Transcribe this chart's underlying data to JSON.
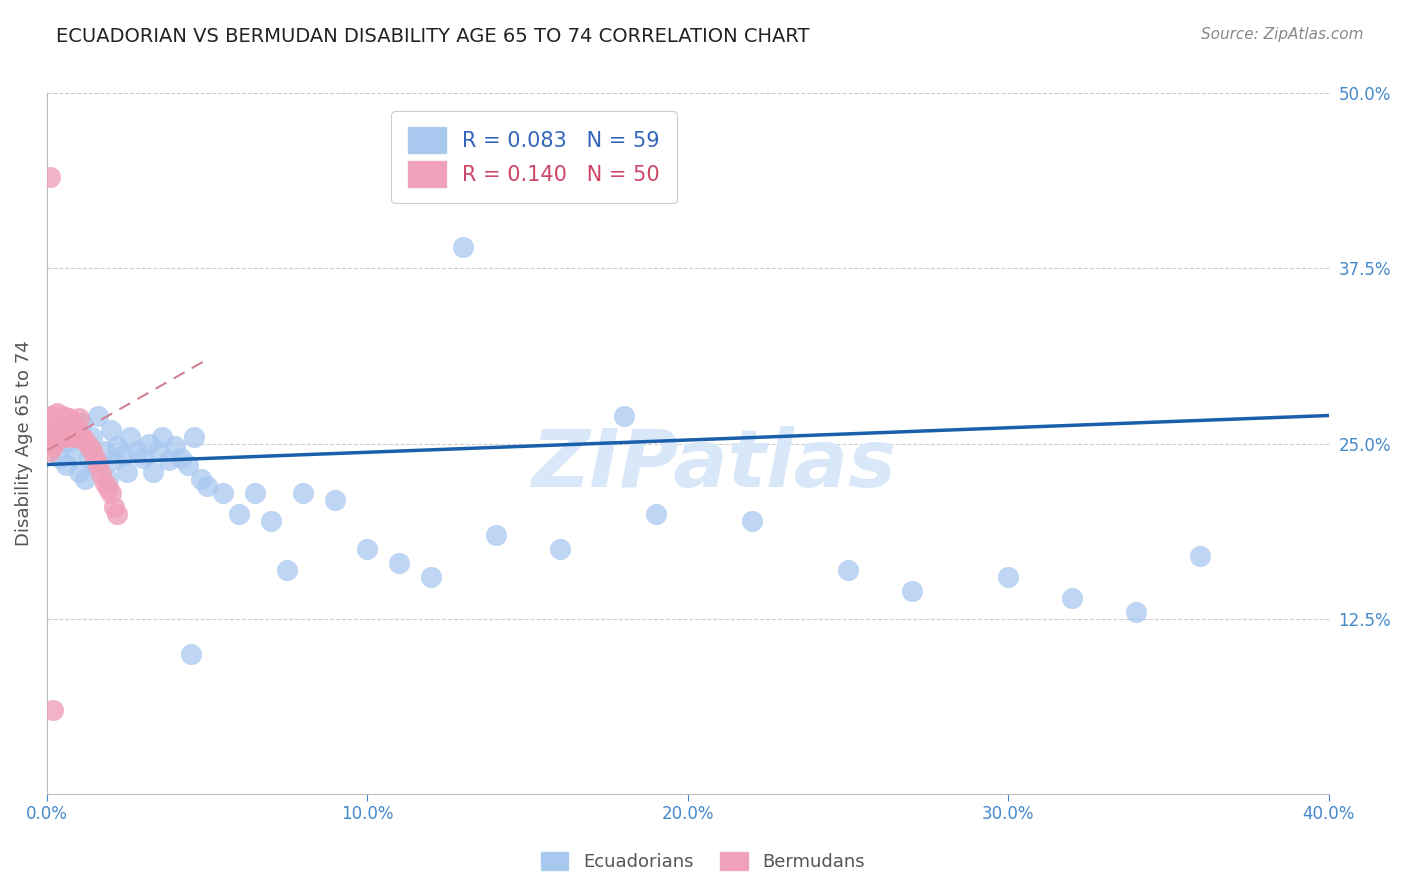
{
  "title": "ECUADORIAN VS BERMUDAN DISABILITY AGE 65 TO 74 CORRELATION CHART",
  "source": "Source: ZipAtlas.com",
  "ylabel": "Disability Age 65 to 74",
  "legend_label1": "Ecuadorians",
  "legend_label2": "Bermudans",
  "R1": 0.083,
  "N1": 59,
  "R2": 0.14,
  "N2": 50,
  "xlim": [
    0.0,
    0.4
  ],
  "ylim": [
    0.0,
    0.5
  ],
  "xtick_vals": [
    0.0,
    0.1,
    0.2,
    0.3,
    0.4
  ],
  "xtick_labels": [
    "0.0%",
    "10.0%",
    "20.0%",
    "30.0%",
    "40.0%"
  ],
  "ytick_vals": [
    0.125,
    0.25,
    0.375,
    0.5
  ],
  "ytick_labels": [
    "12.5%",
    "25.0%",
    "37.5%",
    "50.0%"
  ],
  "color_blue": "#A8C8F0",
  "color_pink": "#F0A0B8",
  "color_trendline_blue": "#1A5FAB",
  "color_trendline_pink": "#D08090",
  "color_grid": "#CCCCCC",
  "color_title": "#222222",
  "color_axis_blue": "#4488CC",
  "color_legend_text_blue": "#3366BB",
  "color_legend_text_pink": "#CC4466",
  "watermark_text": "ZIPatlas",
  "watermark_color": "#D8E8F8",
  "blue_x": [
    0.002,
    0.003,
    0.004,
    0.005,
    0.006,
    0.007,
    0.008,
    0.009,
    0.01,
    0.011,
    0.012,
    0.013,
    0.014,
    0.015,
    0.016,
    0.018,
    0.019,
    0.02,
    0.021,
    0.022,
    0.024,
    0.025,
    0.026,
    0.028,
    0.03,
    0.032,
    0.033,
    0.035,
    0.036,
    0.038,
    0.04,
    0.042,
    0.044,
    0.046,
    0.048,
    0.05,
    0.055,
    0.06,
    0.065,
    0.07,
    0.08,
    0.09,
    0.1,
    0.11,
    0.12,
    0.14,
    0.16,
    0.19,
    0.22,
    0.25,
    0.27,
    0.3,
    0.32,
    0.34,
    0.36,
    0.18,
    0.13,
    0.075,
    0.045
  ],
  "blue_y": [
    0.25,
    0.255,
    0.24,
    0.26,
    0.235,
    0.252,
    0.245,
    0.258,
    0.23,
    0.265,
    0.225,
    0.24,
    0.255,
    0.235,
    0.27,
    0.245,
    0.225,
    0.26,
    0.238,
    0.248,
    0.242,
    0.23,
    0.255,
    0.245,
    0.24,
    0.25,
    0.23,
    0.245,
    0.255,
    0.238,
    0.248,
    0.24,
    0.235,
    0.255,
    0.225,
    0.22,
    0.215,
    0.2,
    0.215,
    0.195,
    0.215,
    0.21,
    0.175,
    0.165,
    0.155,
    0.185,
    0.175,
    0.2,
    0.195,
    0.16,
    0.145,
    0.155,
    0.14,
    0.13,
    0.17,
    0.27,
    0.39,
    0.16,
    0.1
  ],
  "pink_x": [
    0.001,
    0.001,
    0.001,
    0.001,
    0.001,
    0.002,
    0.002,
    0.002,
    0.002,
    0.002,
    0.003,
    0.003,
    0.003,
    0.003,
    0.003,
    0.004,
    0.004,
    0.004,
    0.004,
    0.005,
    0.005,
    0.005,
    0.005,
    0.006,
    0.006,
    0.006,
    0.007,
    0.007,
    0.007,
    0.008,
    0.008,
    0.008,
    0.009,
    0.009,
    0.01,
    0.01,
    0.011,
    0.012,
    0.013,
    0.014,
    0.015,
    0.016,
    0.017,
    0.018,
    0.019,
    0.02,
    0.021,
    0.022,
    0.001,
    0.002
  ],
  "pink_y": [
    0.255,
    0.265,
    0.245,
    0.26,
    0.27,
    0.258,
    0.252,
    0.265,
    0.248,
    0.27,
    0.262,
    0.255,
    0.268,
    0.26,
    0.272,
    0.258,
    0.265,
    0.255,
    0.268,
    0.26,
    0.265,
    0.255,
    0.27,
    0.26,
    0.268,
    0.255,
    0.262,
    0.258,
    0.268,
    0.26,
    0.265,
    0.255,
    0.258,
    0.262,
    0.255,
    0.268,
    0.255,
    0.252,
    0.248,
    0.245,
    0.24,
    0.235,
    0.228,
    0.222,
    0.218,
    0.215,
    0.205,
    0.2,
    0.44,
    0.06
  ],
  "blue_trendline_x": [
    0.0,
    0.4
  ],
  "blue_trendline_y": [
    0.235,
    0.27
  ],
  "pink_trendline_x": [
    0.0,
    0.05
  ],
  "pink_trendline_y": [
    0.245,
    0.31
  ]
}
